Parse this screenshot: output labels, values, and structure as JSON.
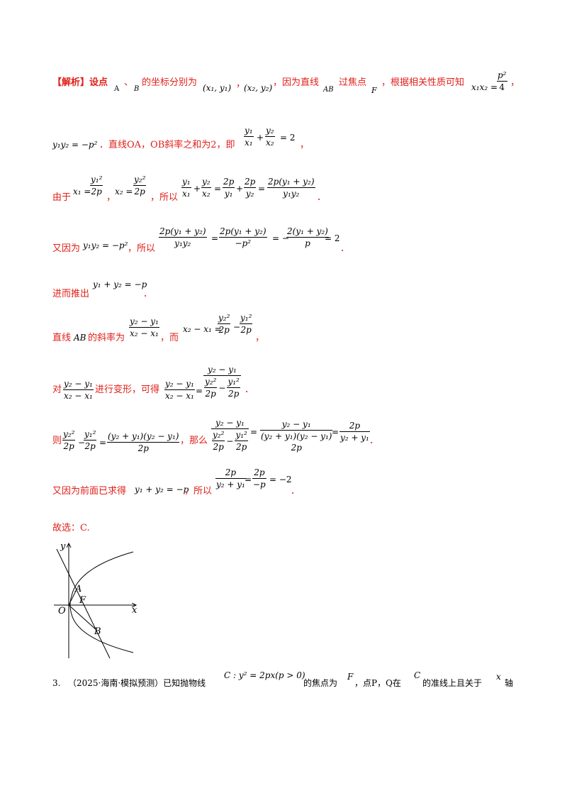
{
  "analysis": {
    "lead": "【解析】设点",
    "pA": "A",
    "sep1": "、",
    "pB": "B",
    "coords_text": "的坐标分别为",
    "coord1": "(x₁, y₁)",
    "sep2": "，",
    "coord2": "(x₂, y₂)",
    "because_text": "，因为直线",
    "lineAB": "AB",
    "through_text": "过焦点",
    "focusF": "F",
    "prop_text": "，根据相关性质可知",
    "x1x2": "x₁x₂ =",
    "p2": "p²",
    "four": "4",
    "comma": "，"
  },
  "line2": {
    "y1y2": "y₁y₂ = −p²",
    "text": "．直线OA，OB斜率之和为2，即",
    "f1_num": "y₁",
    "f1_den": "x₁",
    "plus": "+",
    "f2_num": "y₂",
    "f2_den": "x₂",
    "eq2": "= 2",
    "comma": "，"
  },
  "line3": {
    "since": "由于",
    "x1": "x₁ =",
    "x1_num": "y₁²",
    "x1_den": "2p",
    "comma": "，",
    "x2": "x₂ =",
    "x2_num": "y₂²",
    "x2_den": "2p",
    "so": "，所以",
    "a_num": "y₁",
    "a_den": "x₁",
    "plus": "+",
    "b_num": "y₂",
    "b_den": "x₂",
    "eq": "=",
    "c_num": "2p",
    "c_den": "y₁",
    "plus2": "+",
    "d_num": "2p",
    "d_den": "y₂",
    "eq2": "=",
    "e_num": "2p(y₁ + y₂)",
    "e_den": "y₁y₂",
    "period": "．"
  },
  "line4": {
    "also": "又因为",
    "rel": "y₁y₂ = −p²",
    "so": "，所以",
    "a_num": "2p(y₁ + y₂)",
    "a_den": "y₁y₂",
    "eq": "=",
    "b_num": "2p(y₁ + y₂)",
    "b_den": "−p²",
    "eq2": "= −",
    "c_num": "2(y₁ + y₂)",
    "c_den": "p",
    "eq3": "= 2",
    "period": "．"
  },
  "line5": {
    "text": "进而推出",
    "rel": "y₁ + y₂ = −p",
    "period": "．"
  },
  "line6": {
    "text": "直线",
    "ab": "AB",
    "slope": "的斜率为",
    "s_num": "y₂ − y₁",
    "s_den": "x₂ − x₁",
    "and": "，而",
    "diff": "x₂ − x₁ =",
    "a_num": "y₂²",
    "a_den": "2p",
    "minus": "−",
    "b_num": "y₁²",
    "b_den": "2p",
    "comma": "，"
  },
  "line7": {
    "for": "对",
    "s_num": "y₂ − y₁",
    "s_den": "x₂ − x₁",
    "transform": "进行变形，可得",
    "t_num": "y₂ − y₁",
    "t_den": "x₂ − x₁",
    "eq": "=",
    "u_num": "y₂ − y₁",
    "u_a_num": "y₂²",
    "u_a_den": "2p",
    "u_minus": "−",
    "u_b_num": "y₁²",
    "u_b_den": "2p",
    "period": "．"
  },
  "line8": {
    "then": "则",
    "a_num": "y₂²",
    "a_den": "2p",
    "minus": "−",
    "b_num": "y₁²",
    "b_den": "2p",
    "eq": "=",
    "c_num": "(y₂ + y₁)(y₂ − y₁)",
    "c_den": "2p",
    "so": "，那么",
    "d_num": "y₂ − y₁",
    "d_a_num": "y₂²",
    "d_a_den": "2p",
    "d_minus": "−",
    "d_b_num": "y₁²",
    "d_b_den": "2p",
    "eq2": "=",
    "e_num": "y₂ − y₁",
    "e_den_top": "(y₂ + y₁)(y₂ − y₁)",
    "e_den_bot": "2p",
    "eq3": "=",
    "f_num": "2p",
    "f_den": "y₂ + y₁",
    "period": "．"
  },
  "line9": {
    "text": "又因为前面已求得",
    "rel": "y₁ + y₂ = −p",
    "so": "，所以",
    "a_num": "2p",
    "a_den": "y₂ + y₁",
    "eq": "=",
    "b_num": "2p",
    "b_den": "−p",
    "eq2": "= −2",
    "period": "．"
  },
  "answer": "故选：C.",
  "figure": {
    "y_label": "y",
    "x_label": "x",
    "origin": "O",
    "focus": "F",
    "pointA": "A",
    "pointB": "B"
  },
  "question": {
    "number": "3.",
    "source": "（2025·海南·模拟预测）已知抛物线",
    "eq": "C : y² = 2px(p > 0)",
    "focus_text": "的焦点为",
    "F": "F",
    "points_text": "，点P，Q在",
    "C": "C",
    "directrix_text": "的准线上且关于",
    "x": "x",
    "axis": "轴"
  }
}
